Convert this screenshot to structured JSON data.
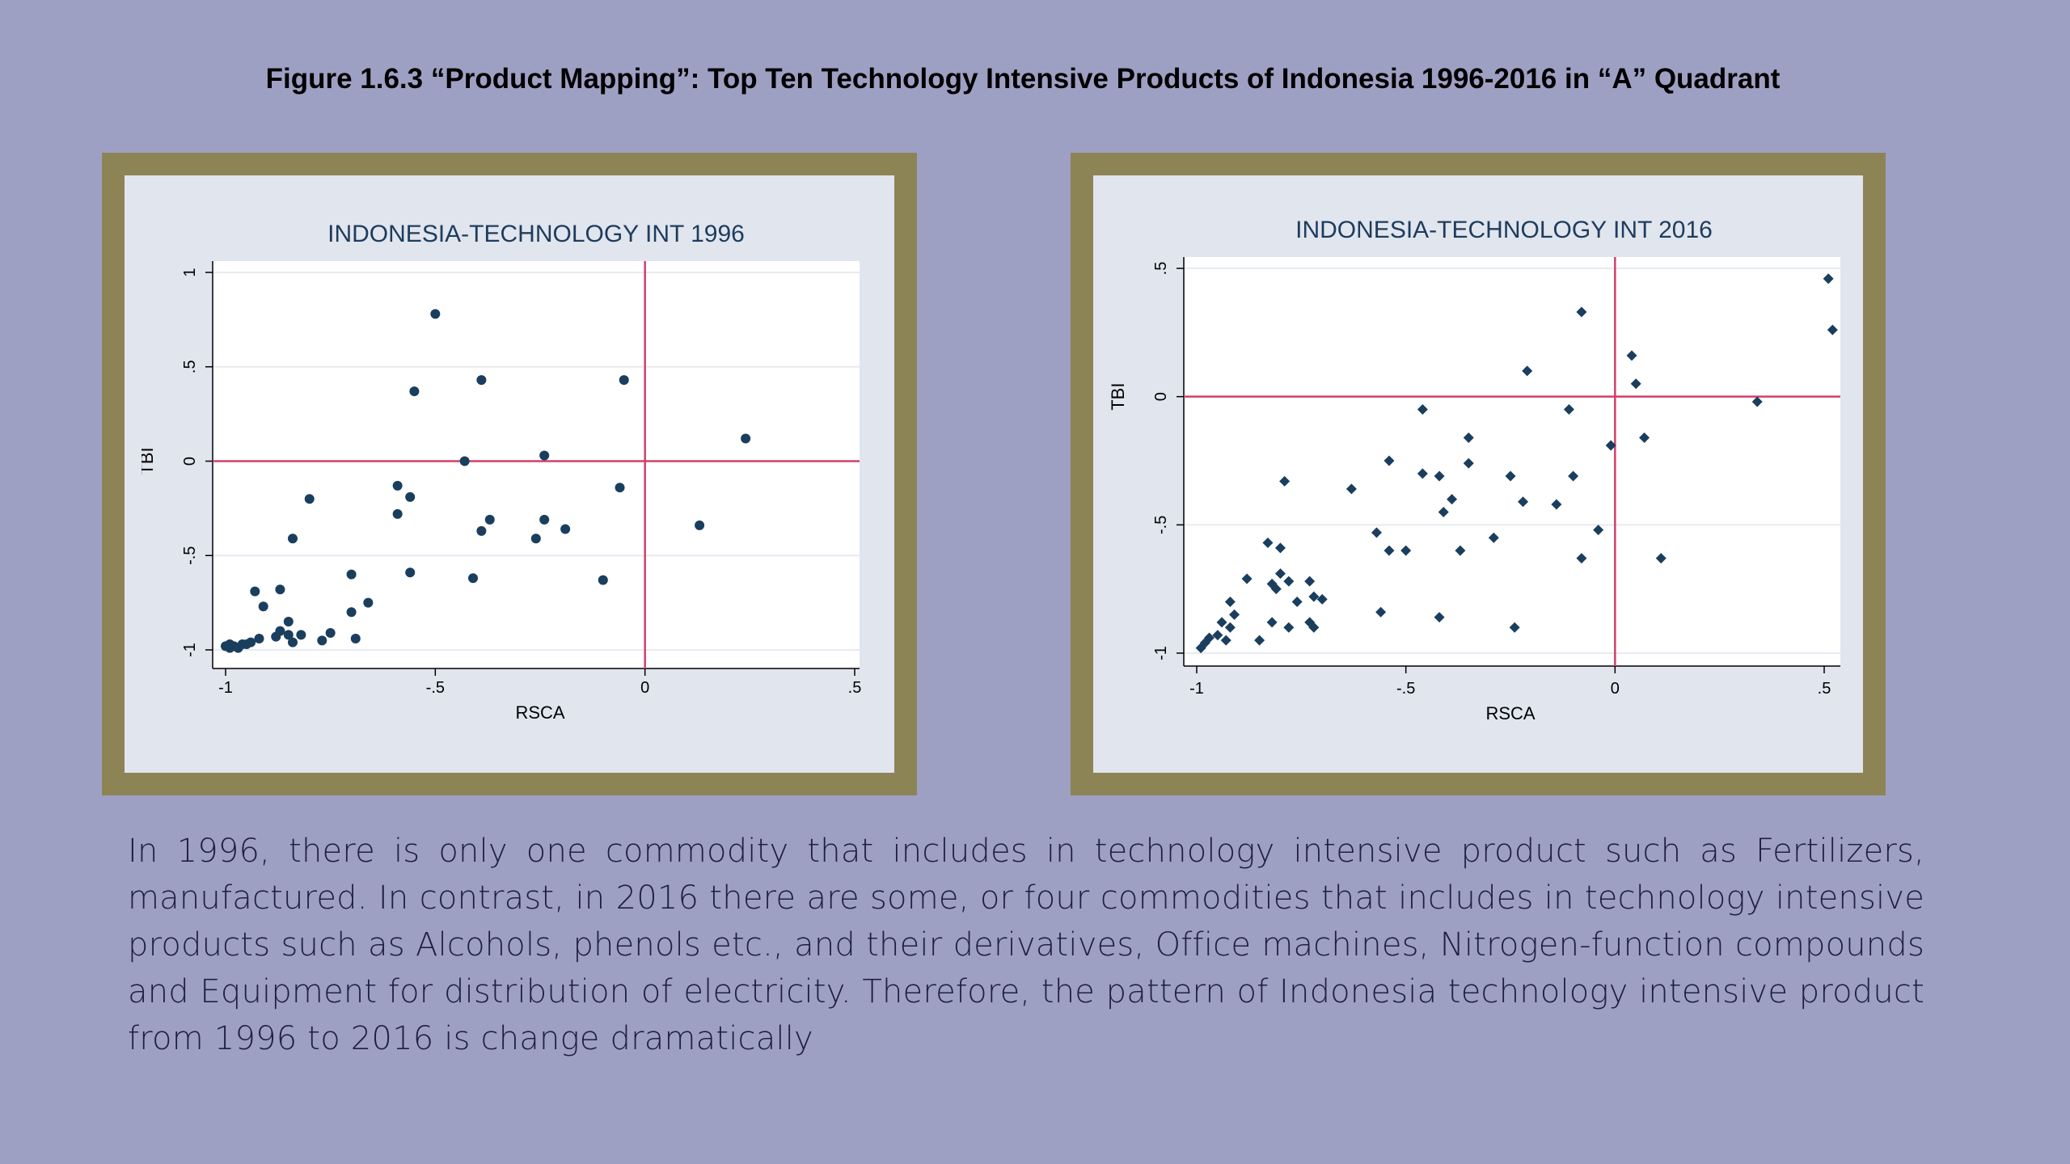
{
  "page": {
    "title": "Figure 1.6.3 “Product Mapping”: Top Ten Technology Intensive Products of Indonesia 1996-2016 in “A” Quadrant",
    "description": "In 1996, there is only one commodity that includes in technology intensive product such as Fertilizers, manufactured. In contrast, in 2016 there are some, or four commodities that includes in technology intensive products such as Alcohols, phenols etc., and their derivatives, Office machines, Nitrogen-function compounds and Equipment for distribution of electricity. Therefore, the pattern of Indonesia technology intensive product from 1996 to 2016 is change dramatically"
  },
  "colors": {
    "background": "#9ea0c3",
    "frame": "#8c8455",
    "mat": "#e1e5ee",
    "plot_area": "#ffffff",
    "marker": "#1a3e5e",
    "reference_line": "#d0406a",
    "gridline": "#e7ebf1"
  },
  "chart_data": [
    {
      "type": "scatter",
      "title": "INDONESIA-TECHNOLOGY INT 1996",
      "xlabel": "RSCA",
      "ylabel": "TBI",
      "xlim": [
        -1,
        0.5
      ],
      "ylim": [
        -1,
        1
      ],
      "xticks": [
        -1,
        -0.5,
        0,
        0.5
      ],
      "xtick_labels": [
        "-1",
        "-.5",
        "0",
        ".5"
      ],
      "yticks": [
        -1,
        -0.5,
        0,
        0.5,
        1
      ],
      "ytick_labels": [
        "-1",
        "-.5",
        "0",
        ".5",
        "1"
      ],
      "reference_lines": {
        "x": 0,
        "y": 0
      },
      "grid": true,
      "marker": "circle",
      "points": [
        [
          -0.5,
          0.78
        ],
        [
          -0.55,
          0.37
        ],
        [
          -0.39,
          0.43
        ],
        [
          -0.05,
          0.43
        ],
        [
          0.24,
          0.12
        ],
        [
          -0.43,
          0.0
        ],
        [
          -0.24,
          0.03
        ],
        [
          -0.06,
          -0.14
        ],
        [
          -0.59,
          -0.13
        ],
        [
          -0.56,
          -0.19
        ],
        [
          -0.59,
          -0.28
        ],
        [
          -0.8,
          -0.2
        ],
        [
          -0.39,
          -0.37
        ],
        [
          -0.37,
          -0.31
        ],
        [
          -0.24,
          -0.31
        ],
        [
          -0.26,
          -0.41
        ],
        [
          -0.19,
          -0.36
        ],
        [
          0.13,
          -0.34
        ],
        [
          -0.84,
          -0.41
        ],
        [
          -0.56,
          -0.59
        ],
        [
          -0.41,
          -0.62
        ],
        [
          -0.1,
          -0.63
        ],
        [
          -0.7,
          -0.6
        ],
        [
          -0.66,
          -0.75
        ],
        [
          -0.7,
          -0.8
        ],
        [
          -0.82,
          -0.92
        ],
        [
          -0.85,
          -0.85
        ],
        [
          -0.87,
          -0.68
        ],
        [
          -0.93,
          -0.69
        ],
        [
          -0.91,
          -0.77
        ],
        [
          -0.75,
          -0.91
        ],
        [
          -0.77,
          -0.95
        ],
        [
          -0.69,
          -0.94
        ],
        [
          -0.85,
          -0.92
        ],
        [
          -0.87,
          -0.9
        ],
        [
          -0.88,
          -0.93
        ],
        [
          -0.84,
          -0.96
        ],
        [
          -0.92,
          -0.94
        ],
        [
          -0.94,
          -0.96
        ],
        [
          -0.96,
          -0.97
        ],
        [
          -0.98,
          -0.98
        ],
        [
          -0.99,
          -0.99
        ],
        [
          -0.97,
          -0.99
        ],
        [
          -0.95,
          -0.97
        ],
        [
          -1.0,
          -0.98
        ],
        [
          -0.99,
          -0.97
        ]
      ]
    },
    {
      "type": "scatter",
      "title": "INDONESIA-TECHNOLOGY INT 2016",
      "xlabel": "RSCA",
      "ylabel": "TBI",
      "xlim": [
        -1,
        0.5
      ],
      "ylim": [
        -1,
        0.5
      ],
      "xticks": [
        -1,
        -0.5,
        0,
        0.5
      ],
      "xtick_labels": [
        "-1",
        "-.5",
        "0",
        ".5"
      ],
      "yticks": [
        -1,
        -0.5,
        0,
        0.5
      ],
      "ytick_labels": [
        "-1",
        "-.5",
        "0",
        ".5"
      ],
      "reference_lines": {
        "x": 0,
        "y": 0
      },
      "grid": true,
      "marker": "diamond",
      "points": [
        [
          0.51,
          0.46
        ],
        [
          0.52,
          0.26
        ],
        [
          -0.08,
          0.33
        ],
        [
          0.04,
          0.16
        ],
        [
          0.05,
          0.05
        ],
        [
          -0.21,
          0.1
        ],
        [
          0.34,
          -0.02
        ],
        [
          -0.11,
          -0.05
        ],
        [
          -0.46,
          -0.05
        ],
        [
          0.07,
          -0.16
        ],
        [
          -0.01,
          -0.19
        ],
        [
          -0.35,
          -0.16
        ],
        [
          -0.54,
          -0.25
        ],
        [
          -0.35,
          -0.26
        ],
        [
          -0.46,
          -0.3
        ],
        [
          -0.42,
          -0.31
        ],
        [
          -0.25,
          -0.31
        ],
        [
          -0.1,
          -0.31
        ],
        [
          -0.79,
          -0.33
        ],
        [
          -0.63,
          -0.36
        ],
        [
          -0.39,
          -0.4
        ],
        [
          -0.22,
          -0.41
        ],
        [
          -0.14,
          -0.42
        ],
        [
          -0.41,
          -0.45
        ],
        [
          -0.57,
          -0.53
        ],
        [
          -0.04,
          -0.52
        ],
        [
          -0.29,
          -0.55
        ],
        [
          -0.54,
          -0.6
        ],
        [
          -0.5,
          -0.6
        ],
        [
          -0.37,
          -0.6
        ],
        [
          0.11,
          -0.63
        ],
        [
          -0.08,
          -0.63
        ],
        [
          -0.83,
          -0.57
        ],
        [
          -0.8,
          -0.59
        ],
        [
          -0.88,
          -0.71
        ],
        [
          -0.8,
          -0.69
        ],
        [
          -0.82,
          -0.73
        ],
        [
          -0.78,
          -0.72
        ],
        [
          -0.81,
          -0.75
        ],
        [
          -0.73,
          -0.72
        ],
        [
          -0.72,
          -0.78
        ],
        [
          -0.7,
          -0.79
        ],
        [
          -0.76,
          -0.8
        ],
        [
          -0.92,
          -0.8
        ],
        [
          -0.91,
          -0.85
        ],
        [
          -0.56,
          -0.84
        ],
        [
          -0.42,
          -0.86
        ],
        [
          -0.73,
          -0.88
        ],
        [
          -0.72,
          -0.9
        ],
        [
          -0.78,
          -0.9
        ],
        [
          -0.82,
          -0.88
        ],
        [
          -0.94,
          -0.88
        ],
        [
          -0.92,
          -0.9
        ],
        [
          -0.95,
          -0.93
        ],
        [
          -0.93,
          -0.95
        ],
        [
          -0.98,
          -0.96
        ],
        [
          -0.99,
          -0.98
        ],
        [
          -0.97,
          -0.94
        ],
        [
          -0.85,
          -0.95
        ],
        [
          -0.24,
          -0.9
        ]
      ]
    }
  ]
}
